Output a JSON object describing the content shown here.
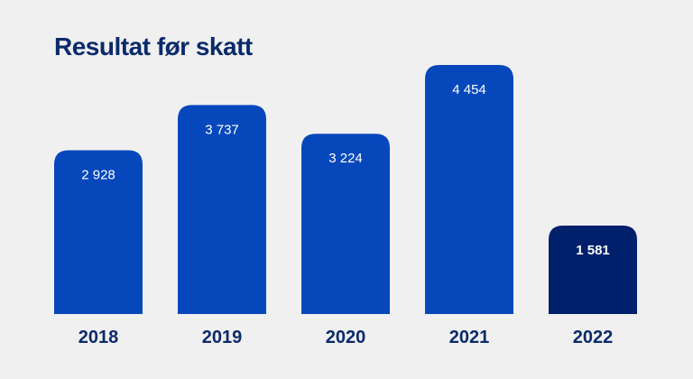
{
  "chart_data": {
    "type": "bar",
    "title": "Resultat før skatt",
    "categories": [
      "2018",
      "2019",
      "2020",
      "2021",
      "2022"
    ],
    "values": [
      2928,
      3737,
      3224,
      4454,
      1581
    ],
    "value_labels": [
      "2 928",
      "3 737",
      "3 224",
      "4 454",
      "1 581"
    ],
    "highlight_index": 4,
    "xlabel": "",
    "ylabel": "",
    "ylim": [
      0,
      5000
    ],
    "grid": false,
    "colors": {
      "bar": "#0648bc",
      "highlight_bar": "#00206b",
      "label": "#ffffff",
      "title": "#0a2a6b",
      "tick": "#0a2a6b",
      "background": "#f0f0f0"
    }
  }
}
